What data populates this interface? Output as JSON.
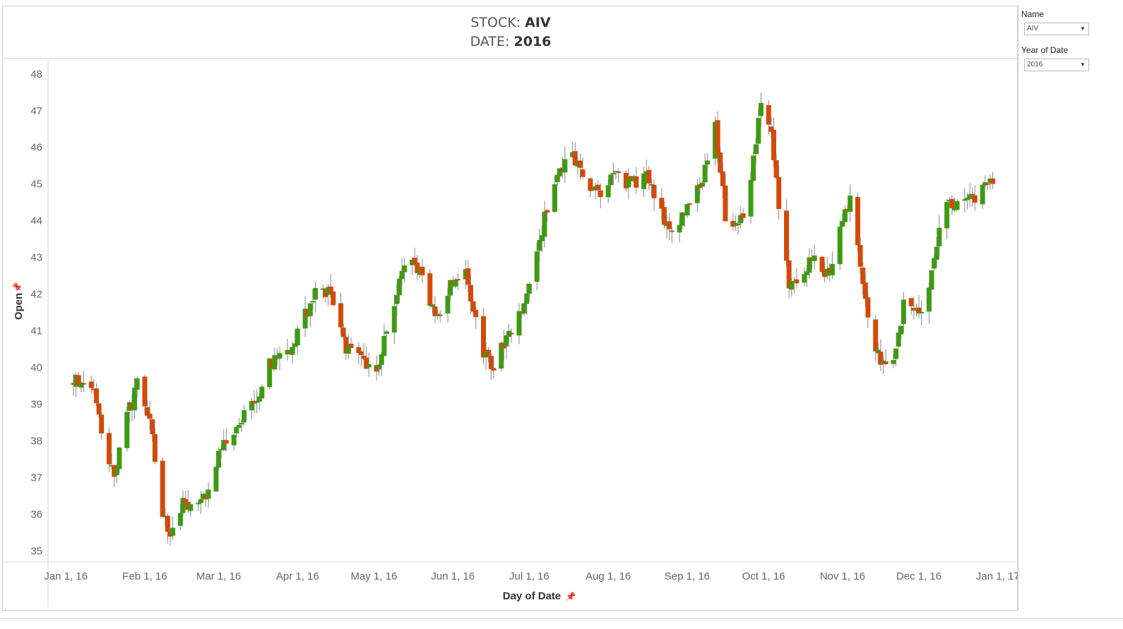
{
  "header": {
    "stock_label": "STOCK:",
    "stock_value": "AIV",
    "date_label": "DATE:",
    "date_value": "2016"
  },
  "filters": {
    "name": {
      "label": "Name",
      "value": "AIV",
      "icon": "chevron-down-icon"
    },
    "year": {
      "label": "Year of Date",
      "value": "2016",
      "icon": "chevron-down-icon"
    }
  },
  "colors": {
    "up": "#3f9a13",
    "down": "#d24a09",
    "wick": "#888888"
  },
  "chart_data": {
    "type": "candlestick",
    "xlabel": "Day of Date",
    "ylabel": "Open",
    "ylim": [
      34.7,
      48.4
    ],
    "xlim": [
      "2015-12-25",
      "2017-01-08"
    ],
    "yticks": [
      35,
      36,
      37,
      38,
      39,
      40,
      41,
      42,
      43,
      44,
      45,
      46,
      47,
      48
    ],
    "xticks": [
      {
        "date": "2016-01-01",
        "label": "Jan 1, 16"
      },
      {
        "date": "2016-02-01",
        "label": "Feb 1, 16"
      },
      {
        "date": "2016-03-01",
        "label": "Mar 1, 16"
      },
      {
        "date": "2016-04-01",
        "label": "Apr 1, 16"
      },
      {
        "date": "2016-05-01",
        "label": "May 1, 16"
      },
      {
        "date": "2016-06-01",
        "label": "Jun 1, 16"
      },
      {
        "date": "2016-07-01",
        "label": "Jul 1, 16"
      },
      {
        "date": "2016-08-01",
        "label": "Aug 1, 16"
      },
      {
        "date": "2016-09-01",
        "label": "Sep 1, 16"
      },
      {
        "date": "2016-10-01",
        "label": "Oct 1, 16"
      },
      {
        "date": "2016-11-01",
        "label": "Nov 1, 16"
      },
      {
        "date": "2016-12-01",
        "label": "Dec 1, 16"
      },
      {
        "date": "2017-01-01",
        "label": "Jan 1, 17"
      }
    ],
    "grid": false,
    "anchors": [
      [
        "2016-01-04",
        39.6
      ],
      [
        "2016-01-11",
        39.5
      ],
      [
        "2016-01-15",
        38.2
      ],
      [
        "2016-01-20",
        37.0
      ],
      [
        "2016-01-25",
        38.6
      ],
      [
        "2016-01-29",
        39.6
      ],
      [
        "2016-02-03",
        38.5
      ],
      [
        "2016-02-08",
        36.0
      ],
      [
        "2016-02-11",
        35.5
      ],
      [
        "2016-02-16",
        36.3
      ],
      [
        "2016-02-22",
        36.4
      ],
      [
        "2016-02-26",
        36.6
      ],
      [
        "2016-03-02",
        37.8
      ],
      [
        "2016-03-08",
        38.5
      ],
      [
        "2016-03-15",
        39.0
      ],
      [
        "2016-03-22",
        40.2
      ],
      [
        "2016-03-29",
        40.3
      ],
      [
        "2016-04-04",
        41.4
      ],
      [
        "2016-04-08",
        42.0
      ],
      [
        "2016-04-14",
        42.0
      ],
      [
        "2016-04-20",
        40.5
      ],
      [
        "2016-04-26",
        40.2
      ],
      [
        "2016-05-02",
        40.0
      ],
      [
        "2016-05-09",
        41.8
      ],
      [
        "2016-05-13",
        43.0
      ],
      [
        "2016-05-19",
        42.5
      ],
      [
        "2016-05-25",
        41.3
      ],
      [
        "2016-06-01",
        42.4
      ],
      [
        "2016-06-06",
        42.5
      ],
      [
        "2016-06-13",
        40.3
      ],
      [
        "2016-06-17",
        40.0
      ],
      [
        "2016-06-23",
        40.9
      ],
      [
        "2016-06-29",
        41.7
      ],
      [
        "2016-07-06",
        43.8
      ],
      [
        "2016-07-12",
        45.2
      ],
      [
        "2016-07-18",
        45.8
      ],
      [
        "2016-07-22",
        45.3
      ],
      [
        "2016-07-29",
        44.6
      ],
      [
        "2016-08-03",
        45.3
      ],
      [
        "2016-08-10",
        45.0
      ],
      [
        "2016-08-17",
        45.2
      ],
      [
        "2016-08-23",
        44.0
      ],
      [
        "2016-08-29",
        43.9
      ],
      [
        "2016-09-02",
        44.5
      ],
      [
        "2016-09-07",
        45.0
      ],
      [
        "2016-09-12",
        46.6
      ],
      [
        "2016-09-16",
        44.2
      ],
      [
        "2016-09-21",
        43.7
      ],
      [
        "2016-09-26",
        45.0
      ],
      [
        "2016-09-30",
        47.3
      ],
      [
        "2016-10-04",
        46.5
      ],
      [
        "2016-10-07",
        44.5
      ],
      [
        "2016-10-11",
        42.2
      ],
      [
        "2016-10-17",
        42.7
      ],
      [
        "2016-10-21",
        43.1
      ],
      [
        "2016-10-26",
        42.5
      ],
      [
        "2016-11-01",
        44.0
      ],
      [
        "2016-11-04",
        44.5
      ],
      [
        "2016-11-09",
        42.2
      ],
      [
        "2016-11-14",
        40.5
      ],
      [
        "2016-11-17",
        40.0
      ],
      [
        "2016-11-22",
        40.5
      ],
      [
        "2016-11-25",
        41.7
      ],
      [
        "2016-12-01",
        41.5
      ],
      [
        "2016-12-06",
        42.5
      ],
      [
        "2016-12-09",
        43.8
      ],
      [
        "2016-12-13",
        44.5
      ],
      [
        "2016-12-16",
        44.5
      ],
      [
        "2016-12-21",
        44.5
      ],
      [
        "2016-12-29",
        45.0
      ]
    ],
    "series_note_free": true
  }
}
